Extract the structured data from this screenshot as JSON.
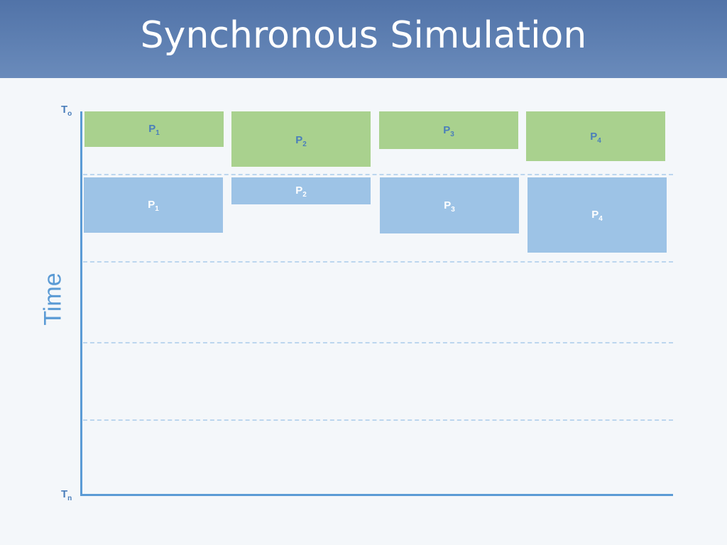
{
  "header": {
    "title": "Synchronous Simulation"
  },
  "axis": {
    "label": "Time",
    "start": {
      "base": "T",
      "sub": "o"
    },
    "end": {
      "base": "T",
      "sub": "n"
    }
  },
  "colors": {
    "header": "#5173a8",
    "phase_1": "#a9d18e",
    "phase_2": "#9dc3e6",
    "axis": "#5b9bd5",
    "gridline": "#bcd6ee"
  },
  "processes": [
    {
      "base": "P",
      "sub": "1"
    },
    {
      "base": "P",
      "sub": "2"
    },
    {
      "base": "P",
      "sub": "3"
    },
    {
      "base": "P",
      "sub": "4"
    }
  ]
}
